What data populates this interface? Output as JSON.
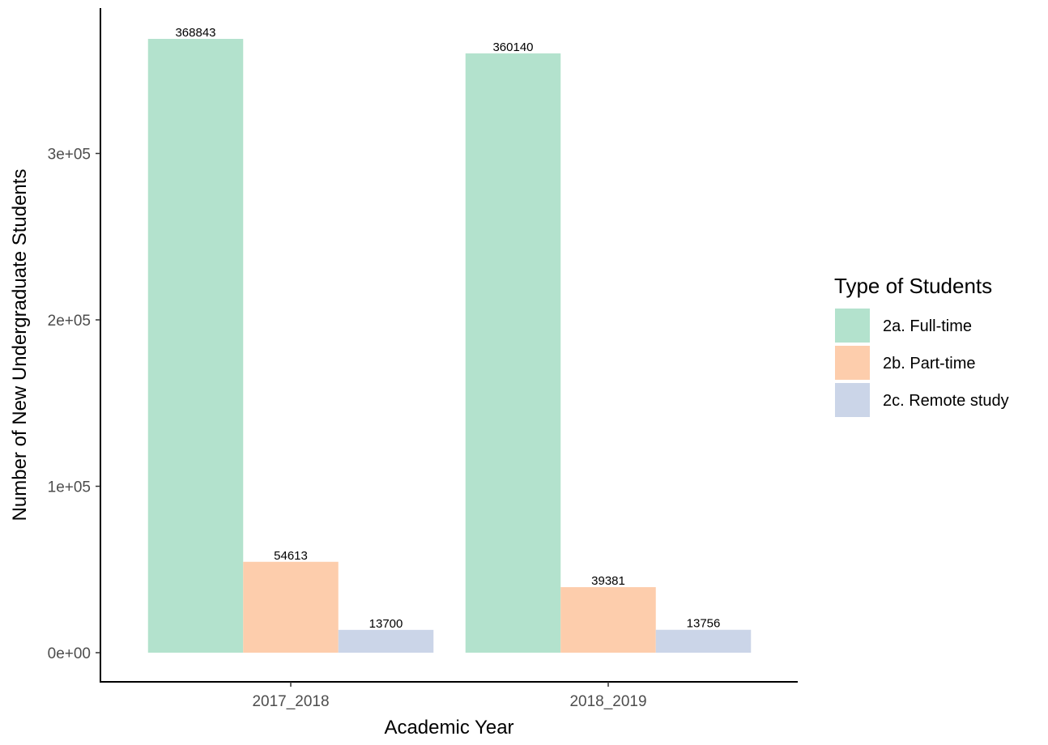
{
  "chart_data": {
    "type": "bar",
    "categories": [
      "2017_2018",
      "2018_2019"
    ],
    "series": [
      {
        "name": "2a. Full-time",
        "values": [
          368843,
          360140
        ],
        "color": "#b3e2cd"
      },
      {
        "name": "2b. Part-time",
        "values": [
          54613,
          39381
        ],
        "color": "#fdcdac"
      },
      {
        "name": "2c. Remote study",
        "values": [
          13700,
          13756
        ],
        "color": "#cbd5e8"
      }
    ],
    "data_labels": [
      [
        "368843",
        "360140"
      ],
      [
        "54613",
        "39381"
      ],
      [
        "13700",
        "13756"
      ]
    ],
    "xlabel": "Academic Year",
    "ylabel": "Number of New Undergraduate Students",
    "ylim": [
      0,
      385000
    ],
    "yticks": [
      0,
      100000,
      200000,
      300000
    ],
    "ytick_labels": [
      "0e+00",
      "1e+05",
      "2e+05",
      "3e+05"
    ],
    "legend_title": "Type of Students",
    "legend_position": "right",
    "grid": false
  }
}
